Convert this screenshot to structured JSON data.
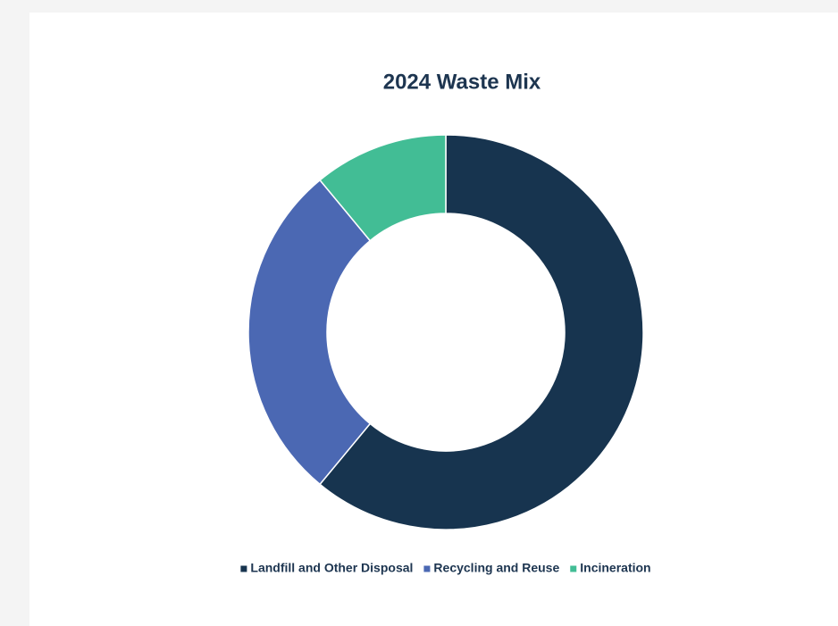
{
  "chart_data": {
    "type": "pie",
    "title": "2024 Waste Mix",
    "categories": [
      "Landfill and Other Disposal",
      "Recycling and Reuse",
      "Incineration"
    ],
    "values": [
      61,
      28,
      11
    ],
    "colors": [
      "#17344f",
      "#4b68b3",
      "#42bd95"
    ],
    "donut": true,
    "legend": "bottom"
  }
}
